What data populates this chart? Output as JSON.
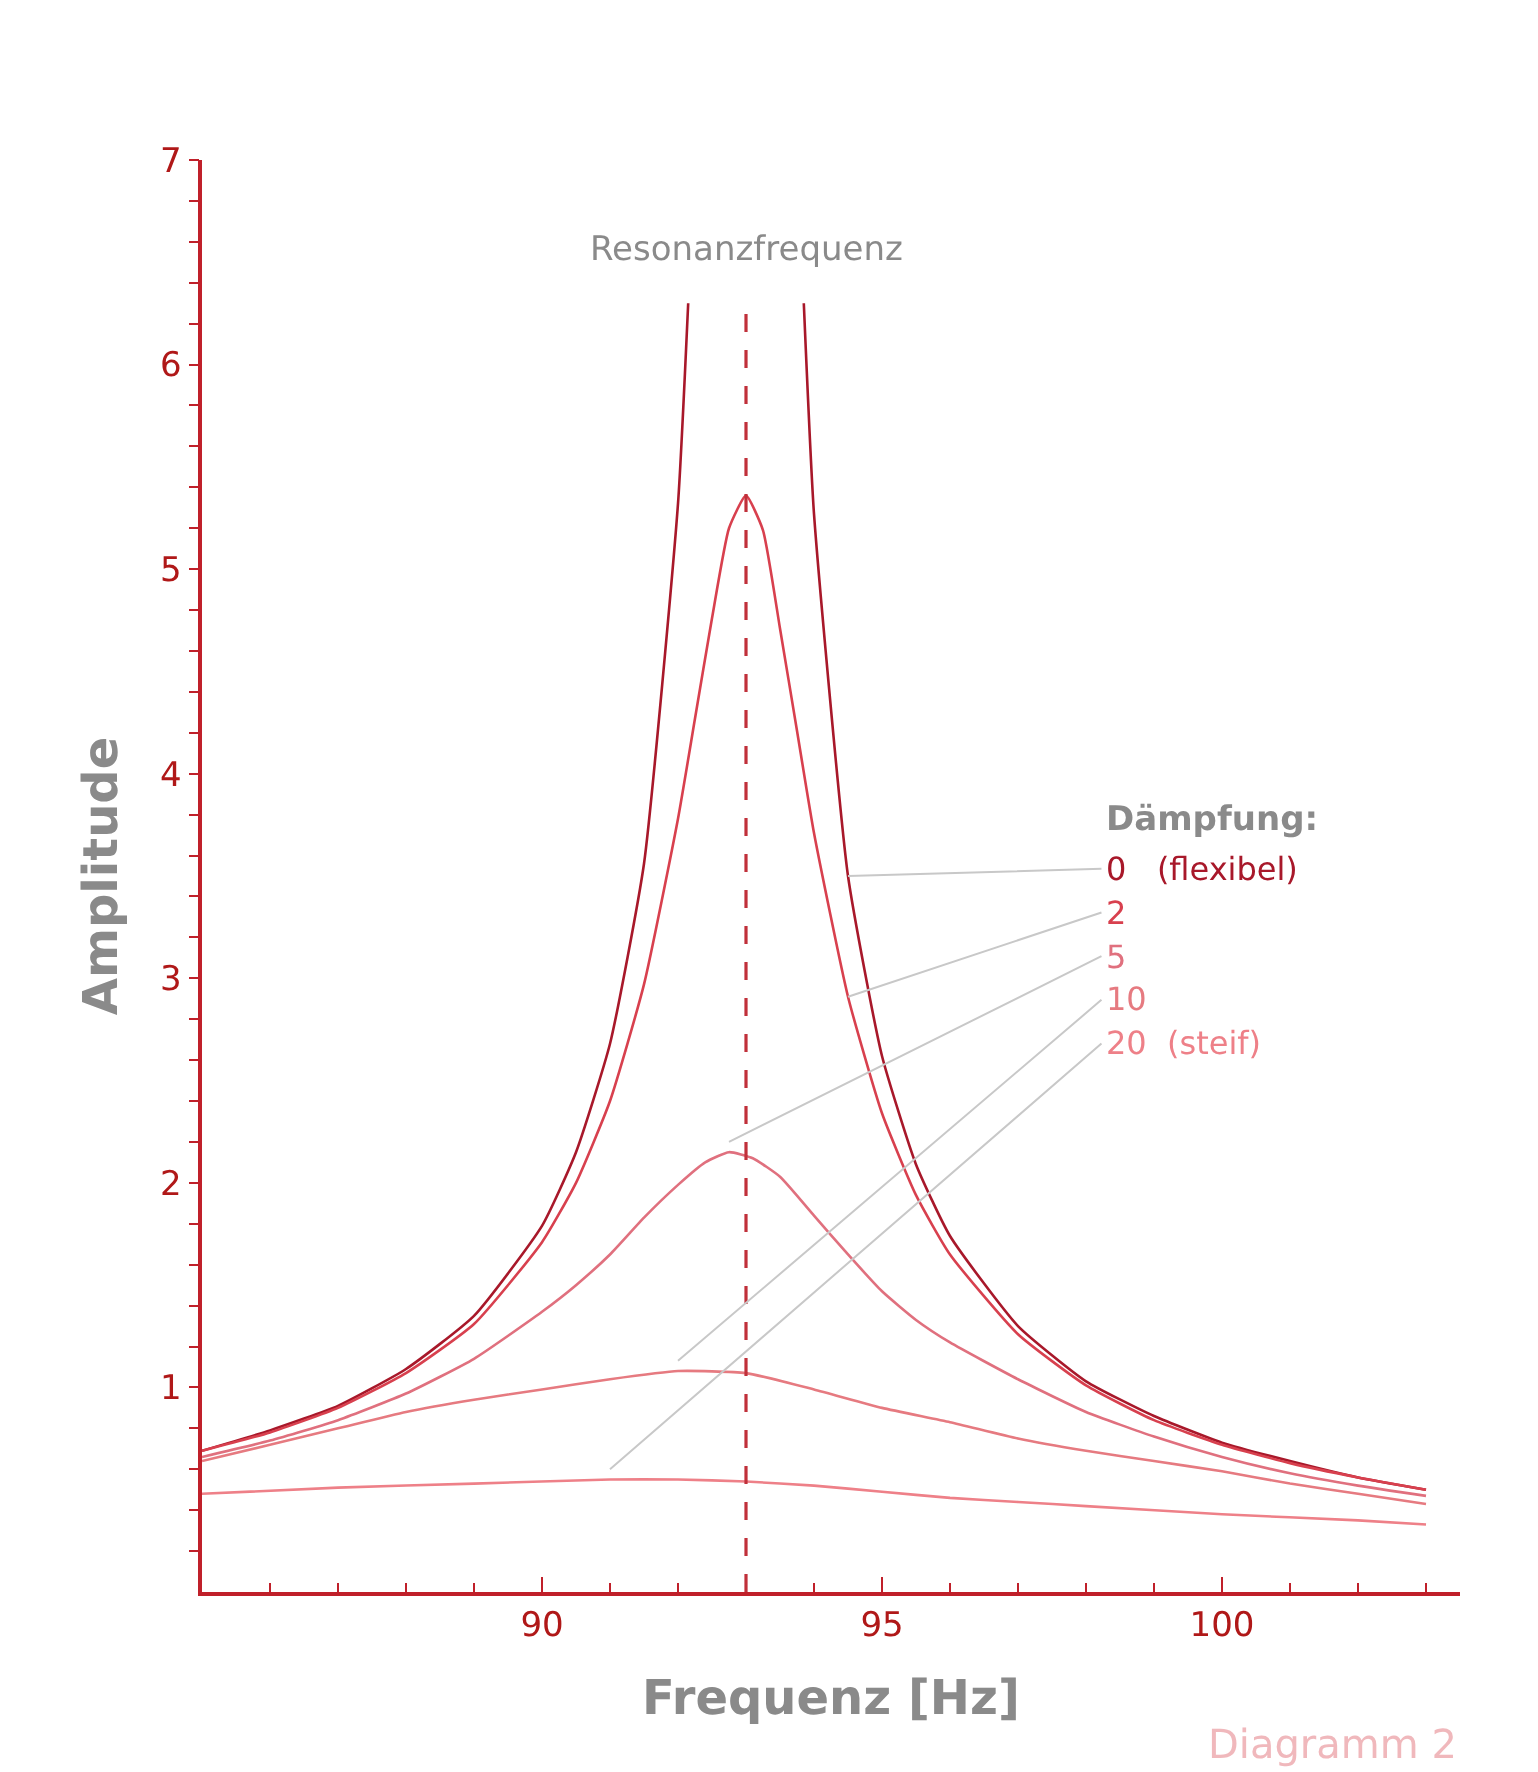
{
  "chart_data": {
    "type": "line",
    "xlabel": "Frequenz [Hz]",
    "ylabel": "Amplitude",
    "legend_title": "Dämpfung:",
    "xlim": [
      85,
      103.5
    ],
    "ylim": [
      0,
      7
    ],
    "xticks": [
      {
        "value": 86,
        "label": null
      },
      {
        "value": 87,
        "label": null
      },
      {
        "value": 88,
        "label": null
      },
      {
        "value": 89,
        "label": null
      },
      90,
      {
        "value": 91,
        "label": null
      },
      {
        "value": 92,
        "label": null
      },
      {
        "value": 93,
        "label": null
      },
      {
        "value": 94,
        "label": null
      },
      95,
      {
        "value": 96,
        "label": null
      },
      {
        "value": 97,
        "label": null
      },
      {
        "value": 98,
        "label": null
      },
      {
        "value": 99,
        "label": null
      },
      100,
      {
        "value": 101,
        "label": null
      },
      {
        "value": 102,
        "label": null
      },
      {
        "value": 103,
        "label": null
      }
    ],
    "yticks": [
      {
        "value": 0.2,
        "label": null
      },
      {
        "value": 0.4,
        "label": null
      },
      {
        "value": 0.6,
        "label": null
      },
      {
        "value": 0.8,
        "label": null
      },
      1,
      {
        "value": 1.2,
        "label": null
      },
      {
        "value": 1.4,
        "label": null
      },
      {
        "value": 1.6,
        "label": null
      },
      {
        "value": 1.8,
        "label": null
      },
      2,
      {
        "value": 2.2,
        "label": null
      },
      {
        "value": 2.4,
        "label": null
      },
      {
        "value": 2.6,
        "label": null
      },
      {
        "value": 2.8,
        "label": null
      },
      3,
      {
        "value": 3.2,
        "label": null
      },
      {
        "value": 3.4,
        "label": null
      },
      {
        "value": 3.6,
        "label": null
      },
      {
        "value": 3.8,
        "label": null
      },
      4,
      {
        "value": 4.2,
        "label": null
      },
      {
        "value": 4.4,
        "label": null
      },
      {
        "value": 4.6,
        "label": null
      },
      {
        "value": 4.8,
        "label": null
      },
      5,
      {
        "value": 5.2,
        "label": null
      },
      {
        "value": 5.4,
        "label": null
      },
      {
        "value": 5.6,
        "label": null
      },
      {
        "value": 5.8,
        "label": null
      },
      6,
      {
        "value": 6.2,
        "label": null
      },
      {
        "value": 6.4,
        "label": null
      },
      {
        "value": 6.6,
        "label": null
      },
      {
        "value": 6.8,
        "label": null
      },
      7
    ],
    "legend": false,
    "marker": "none",
    "line_style": "solid",
    "ref_lines": [
      {
        "axis": "x",
        "value": 93,
        "label": "Resonanzfrequenz",
        "color": "#c0303a",
        "line_style": "dashed"
      }
    ],
    "annotations": [
      "Diagramm 2"
    ],
    "series": [
      {
        "name": "0   (flexibel)",
        "color": "#a8182a",
        "x": [
          85,
          86,
          87,
          88,
          89,
          90,
          90.5,
          91,
          91.5,
          92,
          92.15,
          93,
          93.85,
          94,
          94.5,
          95,
          95.5,
          96,
          97,
          98,
          99,
          100,
          101,
          102,
          103
        ],
        "values": [
          0.69,
          0.79,
          0.91,
          1.09,
          1.35,
          1.79,
          2.15,
          2.68,
          3.56,
          5.32,
          6.3,
          null,
          6.3,
          5.27,
          3.5,
          2.62,
          2.09,
          1.74,
          1.3,
          1.03,
          0.86,
          0.73,
          0.64,
          0.56,
          0.5
        ]
      },
      {
        "name": "2",
        "color": "#d8404e",
        "x": [
          85,
          86,
          87,
          88,
          89,
          90,
          90.5,
          91,
          91.5,
          92,
          92.25,
          92.5,
          92.75,
          93,
          93.25,
          93.5,
          93.75,
          94,
          94.5,
          95,
          95.5,
          96,
          97,
          98,
          99,
          100,
          101,
          102,
          103
        ],
        "values": [
          0.69,
          0.78,
          0.9,
          1.07,
          1.31,
          1.71,
          2.0,
          2.4,
          2.97,
          3.78,
          4.27,
          4.76,
          5.2,
          5.36,
          5.19,
          4.71,
          4.21,
          3.71,
          2.91,
          2.34,
          1.94,
          1.65,
          1.26,
          1.01,
          0.84,
          0.72,
          0.63,
          0.56,
          0.5
        ]
      },
      {
        "name": "5",
        "color": "#e0707e",
        "x": [
          85,
          86,
          87,
          88,
          89,
          90,
          90.5,
          91,
          91.5,
          92,
          92.4,
          92.75,
          93.1,
          93.5,
          94,
          94.5,
          95,
          95.5,
          96,
          97,
          98,
          99,
          100,
          101,
          102,
          103
        ],
        "values": [
          0.66,
          0.74,
          0.84,
          0.97,
          1.14,
          1.37,
          1.5,
          1.65,
          1.83,
          1.99,
          2.1,
          2.15,
          2.12,
          2.03,
          1.84,
          1.65,
          1.47,
          1.33,
          1.22,
          1.04,
          0.88,
          0.76,
          0.66,
          0.58,
          0.52,
          0.47
        ]
      },
      {
        "name": "10",
        "color": "#e67a80",
        "x": [
          85,
          86,
          87,
          88,
          89,
          90,
          91,
          92,
          93,
          94,
          95,
          96,
          97,
          98,
          99,
          100,
          101,
          102,
          103
        ],
        "values": [
          0.64,
          0.72,
          0.8,
          0.88,
          0.94,
          0.99,
          1.04,
          1.08,
          1.07,
          0.99,
          0.9,
          0.83,
          0.75,
          0.69,
          0.64,
          0.59,
          0.53,
          0.48,
          0.43
        ]
      },
      {
        "name": "20  (steif)",
        "color": "#ee8088",
        "x": [
          85,
          87,
          89,
          91,
          92,
          93,
          94,
          95,
          96,
          97,
          98,
          100,
          102,
          103
        ],
        "values": [
          0.48,
          0.51,
          0.53,
          0.55,
          0.55,
          0.54,
          0.52,
          0.49,
          0.46,
          0.44,
          0.42,
          0.38,
          0.35,
          0.33
        ]
      }
    ]
  }
}
